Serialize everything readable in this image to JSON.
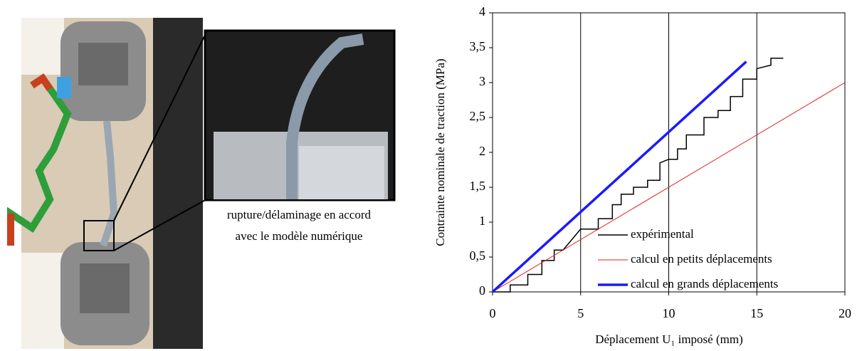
{
  "caption_lines": [
    "rupture/délaminage en accord",
    "avec le modèle numérique"
  ],
  "chart_data": {
    "type": "line",
    "xlabel": "Déplacement U₁ imposé (mm)",
    "ylabel": "Contrainte nominale de traction (MPa)",
    "xlim": [
      0,
      20
    ],
    "xticks": [
      0,
      5,
      10,
      15,
      20
    ],
    "ylim": [
      0,
      4
    ],
    "yticks": [
      0,
      {
        "value": 0.5,
        "label": "0,5"
      },
      1,
      {
        "value": 1.5,
        "label": "1,5"
      },
      2,
      {
        "value": 2.5,
        "label": "2,5"
      },
      3,
      {
        "value": 3.5,
        "label": "3,5"
      },
      4
    ],
    "grid": "x",
    "legend": "lower right",
    "series": [
      {
        "name": "expérimental",
        "color": "#000000",
        "width": 1.5,
        "x": [
          0,
          1,
          1,
          2,
          2,
          2.8,
          2.8,
          3.5,
          3.5,
          4,
          4.5,
          5,
          6,
          6,
          6.8,
          6.8,
          7.3,
          7.3,
          8,
          8,
          8.8,
          8.8,
          9.5,
          9.5,
          10,
          10.5,
          10.5,
          11,
          11,
          12,
          12,
          12.8,
          12.8,
          13.5,
          13.5,
          14.2,
          14.2,
          15,
          15,
          15.8,
          15.8,
          16.5
        ],
        "values": [
          0,
          0,
          0.1,
          0.1,
          0.25,
          0.25,
          0.45,
          0.45,
          0.6,
          0.6,
          0.75,
          0.9,
          0.9,
          1.05,
          1.05,
          1.25,
          1.25,
          1.4,
          1.4,
          1.5,
          1.5,
          1.6,
          1.6,
          1.85,
          1.9,
          1.9,
          2.05,
          2.05,
          2.25,
          2.25,
          2.5,
          2.5,
          2.6,
          2.6,
          2.8,
          2.8,
          3.05,
          3.05,
          3.2,
          3.25,
          3.35,
          3.35
        ]
      },
      {
        "name": "calcul en petits déplacements",
        "color": "#e02020",
        "width": 1,
        "x": [
          0,
          20
        ],
        "values": [
          0,
          3.0
        ]
      },
      {
        "name": "calcul en grands déplacements",
        "color": "#1a1aff",
        "width": 3.5,
        "x": [
          0,
          14.4
        ],
        "values": [
          0,
          3.3
        ]
      }
    ]
  }
}
